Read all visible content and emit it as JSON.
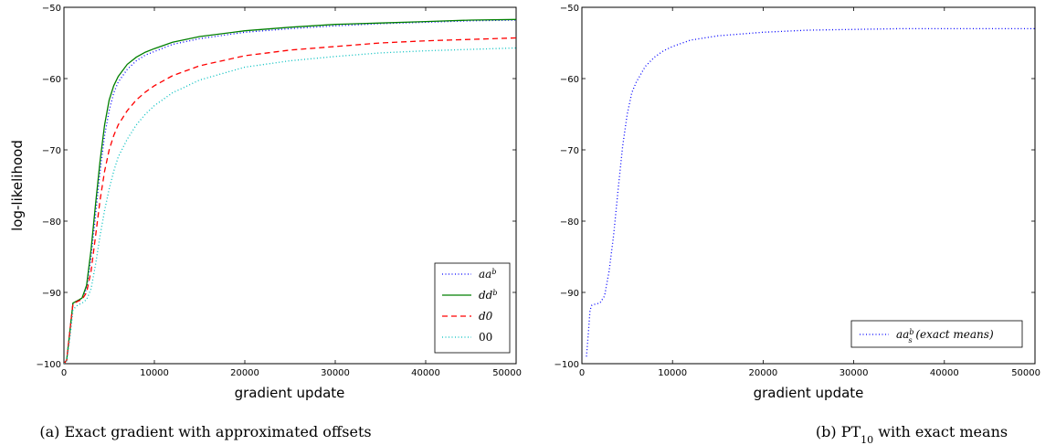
{
  "chart_data": [
    {
      "type": "line",
      "caption": "(a) Exact gradient with approximated offsets",
      "xlabel": "gradient update",
      "ylabel": "log-likelihood",
      "xlim": [
        0,
        50000
      ],
      "ylim": [
        -100,
        -50
      ],
      "xticks": [
        0,
        10000,
        20000,
        30000,
        40000,
        50000
      ],
      "yticks": [
        -100,
        -90,
        -80,
        -70,
        -60,
        -50
      ],
      "grid": false,
      "legend": "bottom-right",
      "series": [
        {
          "name": "aa",
          "name_sup": "b",
          "color": "#0000ff",
          "style": "dotted",
          "x": [
            0,
            300,
            700,
            1000,
            1300,
            1600,
            2000,
            2500,
            3000,
            3500,
            4000,
            4500,
            5000,
            5500,
            6000,
            7000,
            8000,
            9000,
            10000,
            12000,
            15000,
            20000,
            25000,
            30000,
            35000,
            40000,
            45000,
            50000
          ],
          "y": [
            -100,
            -99.5,
            -95,
            -91.5,
            -91.3,
            -91.1,
            -90.8,
            -89.5,
            -85,
            -79,
            -73,
            -68,
            -64.5,
            -62,
            -60.5,
            -58.7,
            -57.5,
            -56.7,
            -56.2,
            -55.2,
            -54.4,
            -53.5,
            -53,
            -52.6,
            -52.3,
            -52.1,
            -51.9,
            -51.8
          ]
        },
        {
          "name": "dd",
          "name_sup": "b",
          "color": "#007f00",
          "style": "solid",
          "x": [
            0,
            300,
            700,
            1000,
            1300,
            1600,
            2000,
            2500,
            3000,
            3500,
            4000,
            4500,
            5000,
            5500,
            6000,
            7000,
            8000,
            9000,
            10000,
            12000,
            15000,
            20000,
            25000,
            30000,
            35000,
            40000,
            45000,
            50000
          ],
          "y": [
            -100,
            -99.5,
            -95,
            -91.5,
            -91.3,
            -91.1,
            -90.8,
            -89,
            -84,
            -77.5,
            -71.5,
            -66.5,
            -63,
            -61,
            -59.7,
            -58,
            -57,
            -56.3,
            -55.8,
            -54.9,
            -54.1,
            -53.3,
            -52.8,
            -52.4,
            -52.2,
            -52,
            -51.8,
            -51.7
          ]
        },
        {
          "name": "d0",
          "name_sup": "",
          "color": "#ff0000",
          "style": "dashed",
          "x": [
            0,
            300,
            700,
            1000,
            1300,
            1600,
            2000,
            2500,
            3000,
            3500,
            4000,
            4500,
            5000,
            5500,
            6000,
            7000,
            8000,
            9000,
            10000,
            12000,
            15000,
            20000,
            25000,
            30000,
            35000,
            40000,
            45000,
            50000
          ],
          "y": [
            -100,
            -99.5,
            -95,
            -91.6,
            -91.4,
            -91.2,
            -91,
            -90,
            -87,
            -82,
            -77,
            -73,
            -70,
            -68,
            -66.5,
            -64.5,
            -63,
            -61.9,
            -61,
            -59.6,
            -58.2,
            -56.8,
            -56,
            -55.5,
            -55,
            -54.7,
            -54.5,
            -54.3
          ]
        },
        {
          "name": "00",
          "name_sup": "",
          "color": "#00bfbf",
          "style": "dotted",
          "x": [
            0,
            300,
            700,
            1000,
            1300,
            1600,
            2000,
            2500,
            3000,
            3500,
            4000,
            4500,
            5000,
            5500,
            6000,
            7000,
            8000,
            9000,
            10000,
            12000,
            15000,
            20000,
            25000,
            30000,
            35000,
            40000,
            45000,
            50000
          ],
          "y": [
            -100,
            -99.6,
            -96,
            -92.5,
            -92,
            -91.7,
            -91.5,
            -91,
            -89.5,
            -86,
            -82,
            -78.5,
            -75.5,
            -73,
            -71,
            -68.5,
            -66.5,
            -65,
            -63.8,
            -62,
            -60.2,
            -58.4,
            -57.5,
            -56.9,
            -56.4,
            -56.1,
            -55.9,
            -55.7
          ]
        }
      ]
    },
    {
      "type": "line",
      "caption": "(b) PT",
      "caption_sub": "10",
      "caption_rest": " with exact means",
      "xlabel": "gradient update",
      "ylabel": "",
      "xlim": [
        0,
        50000
      ],
      "ylim": [
        -100,
        -50
      ],
      "xticks": [
        0,
        10000,
        20000,
        30000,
        40000,
        50000
      ],
      "yticks": [
        -100,
        -90,
        -80,
        -70,
        -60,
        -50
      ],
      "grid": false,
      "legend": "bottom-right",
      "series": [
        {
          "name": "aa",
          "name_sup": "b",
          "name_sub": "s",
          "name_rest": " (exact means)",
          "color": "#0000ff",
          "style": "dotted",
          "x": [
            500,
            700,
            900,
            1100,
            1300,
            1600,
            2000,
            2500,
            3000,
            3500,
            4000,
            4500,
            5000,
            5500,
            6000,
            7000,
            8000,
            9000,
            10000,
            12000,
            15000,
            20000,
            25000,
            30000,
            35000,
            40000,
            45000,
            50000
          ],
          "y": [
            -99,
            -96,
            -92.5,
            -91.8,
            -91.7,
            -91.6,
            -91.5,
            -90.5,
            -87,
            -82,
            -75.5,
            -69.5,
            -65,
            -62,
            -60.5,
            -58.3,
            -57,
            -56.1,
            -55.5,
            -54.6,
            -54,
            -53.5,
            -53.2,
            -53.1,
            -53,
            -53,
            -53,
            -53
          ]
        }
      ]
    }
  ]
}
